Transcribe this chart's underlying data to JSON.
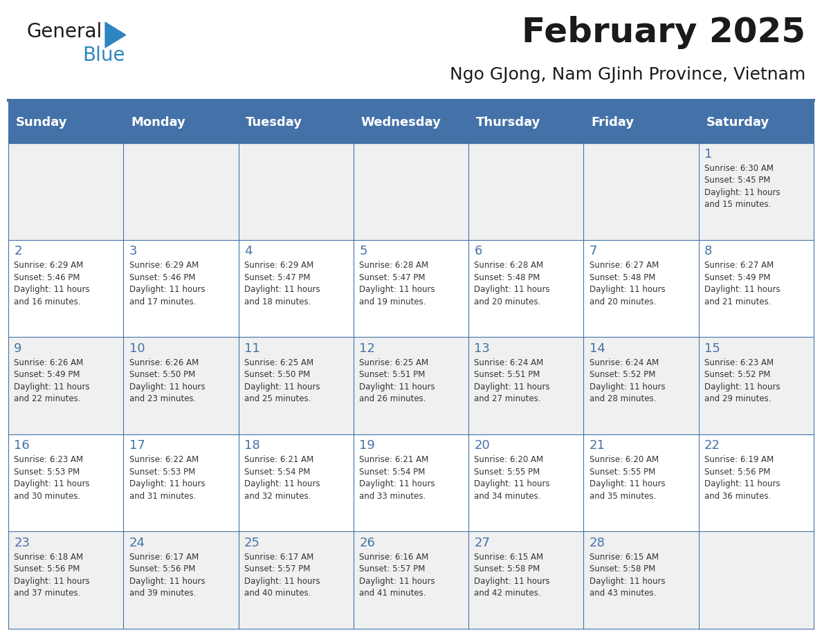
{
  "title": "February 2025",
  "subtitle": "Ngo GJong, Nam GJinh Province, Vietnam",
  "header_bg": "#4472a8",
  "header_text_color": "#ffffff",
  "cell_bg_odd": "#f0f0f0",
  "cell_bg_even": "#ffffff",
  "day_headers": [
    "Sunday",
    "Monday",
    "Tuesday",
    "Wednesday",
    "Thursday",
    "Friday",
    "Saturday"
  ],
  "separator_color": "#4472a8",
  "grid_color": "#4472a8",
  "day_number_color": "#4472a8",
  "info_text_color": "#333333",
  "calendar_data": [
    [
      null,
      null,
      null,
      null,
      null,
      null,
      {
        "day": 1,
        "sunrise": "6:30 AM",
        "sunset": "5:45 PM",
        "daylight_hours": 11,
        "daylight_minutes": 15
      }
    ],
    [
      {
        "day": 2,
        "sunrise": "6:29 AM",
        "sunset": "5:46 PM",
        "daylight_hours": 11,
        "daylight_minutes": 16
      },
      {
        "day": 3,
        "sunrise": "6:29 AM",
        "sunset": "5:46 PM",
        "daylight_hours": 11,
        "daylight_minutes": 17
      },
      {
        "day": 4,
        "sunrise": "6:29 AM",
        "sunset": "5:47 PM",
        "daylight_hours": 11,
        "daylight_minutes": 18
      },
      {
        "day": 5,
        "sunrise": "6:28 AM",
        "sunset": "5:47 PM",
        "daylight_hours": 11,
        "daylight_minutes": 19
      },
      {
        "day": 6,
        "sunrise": "6:28 AM",
        "sunset": "5:48 PM",
        "daylight_hours": 11,
        "daylight_minutes": 20
      },
      {
        "day": 7,
        "sunrise": "6:27 AM",
        "sunset": "5:48 PM",
        "daylight_hours": 11,
        "daylight_minutes": 20
      },
      {
        "day": 8,
        "sunrise": "6:27 AM",
        "sunset": "5:49 PM",
        "daylight_hours": 11,
        "daylight_minutes": 21
      }
    ],
    [
      {
        "day": 9,
        "sunrise": "6:26 AM",
        "sunset": "5:49 PM",
        "daylight_hours": 11,
        "daylight_minutes": 22
      },
      {
        "day": 10,
        "sunrise": "6:26 AM",
        "sunset": "5:50 PM",
        "daylight_hours": 11,
        "daylight_minutes": 23
      },
      {
        "day": 11,
        "sunrise": "6:25 AM",
        "sunset": "5:50 PM",
        "daylight_hours": 11,
        "daylight_minutes": 25
      },
      {
        "day": 12,
        "sunrise": "6:25 AM",
        "sunset": "5:51 PM",
        "daylight_hours": 11,
        "daylight_minutes": 26
      },
      {
        "day": 13,
        "sunrise": "6:24 AM",
        "sunset": "5:51 PM",
        "daylight_hours": 11,
        "daylight_minutes": 27
      },
      {
        "day": 14,
        "sunrise": "6:24 AM",
        "sunset": "5:52 PM",
        "daylight_hours": 11,
        "daylight_minutes": 28
      },
      {
        "day": 15,
        "sunrise": "6:23 AM",
        "sunset": "5:52 PM",
        "daylight_hours": 11,
        "daylight_minutes": 29
      }
    ],
    [
      {
        "day": 16,
        "sunrise": "6:23 AM",
        "sunset": "5:53 PM",
        "daylight_hours": 11,
        "daylight_minutes": 30
      },
      {
        "day": 17,
        "sunrise": "6:22 AM",
        "sunset": "5:53 PM",
        "daylight_hours": 11,
        "daylight_minutes": 31
      },
      {
        "day": 18,
        "sunrise": "6:21 AM",
        "sunset": "5:54 PM",
        "daylight_hours": 11,
        "daylight_minutes": 32
      },
      {
        "day": 19,
        "sunrise": "6:21 AM",
        "sunset": "5:54 PM",
        "daylight_hours": 11,
        "daylight_minutes": 33
      },
      {
        "day": 20,
        "sunrise": "6:20 AM",
        "sunset": "5:55 PM",
        "daylight_hours": 11,
        "daylight_minutes": 34
      },
      {
        "day": 21,
        "sunrise": "6:20 AM",
        "sunset": "5:55 PM",
        "daylight_hours": 11,
        "daylight_minutes": 35
      },
      {
        "day": 22,
        "sunrise": "6:19 AM",
        "sunset": "5:56 PM",
        "daylight_hours": 11,
        "daylight_minutes": 36
      }
    ],
    [
      {
        "day": 23,
        "sunrise": "6:18 AM",
        "sunset": "5:56 PM",
        "daylight_hours": 11,
        "daylight_minutes": 37
      },
      {
        "day": 24,
        "sunrise": "6:17 AM",
        "sunset": "5:56 PM",
        "daylight_hours": 11,
        "daylight_minutes": 39
      },
      {
        "day": 25,
        "sunrise": "6:17 AM",
        "sunset": "5:57 PM",
        "daylight_hours": 11,
        "daylight_minutes": 40
      },
      {
        "day": 26,
        "sunrise": "6:16 AM",
        "sunset": "5:57 PM",
        "daylight_hours": 11,
        "daylight_minutes": 41
      },
      {
        "day": 27,
        "sunrise": "6:15 AM",
        "sunset": "5:58 PM",
        "daylight_hours": 11,
        "daylight_minutes": 42
      },
      {
        "day": 28,
        "sunrise": "6:15 AM",
        "sunset": "5:58 PM",
        "daylight_hours": 11,
        "daylight_minutes": 43
      },
      null
    ]
  ],
  "num_rows": 5,
  "num_cols": 7
}
